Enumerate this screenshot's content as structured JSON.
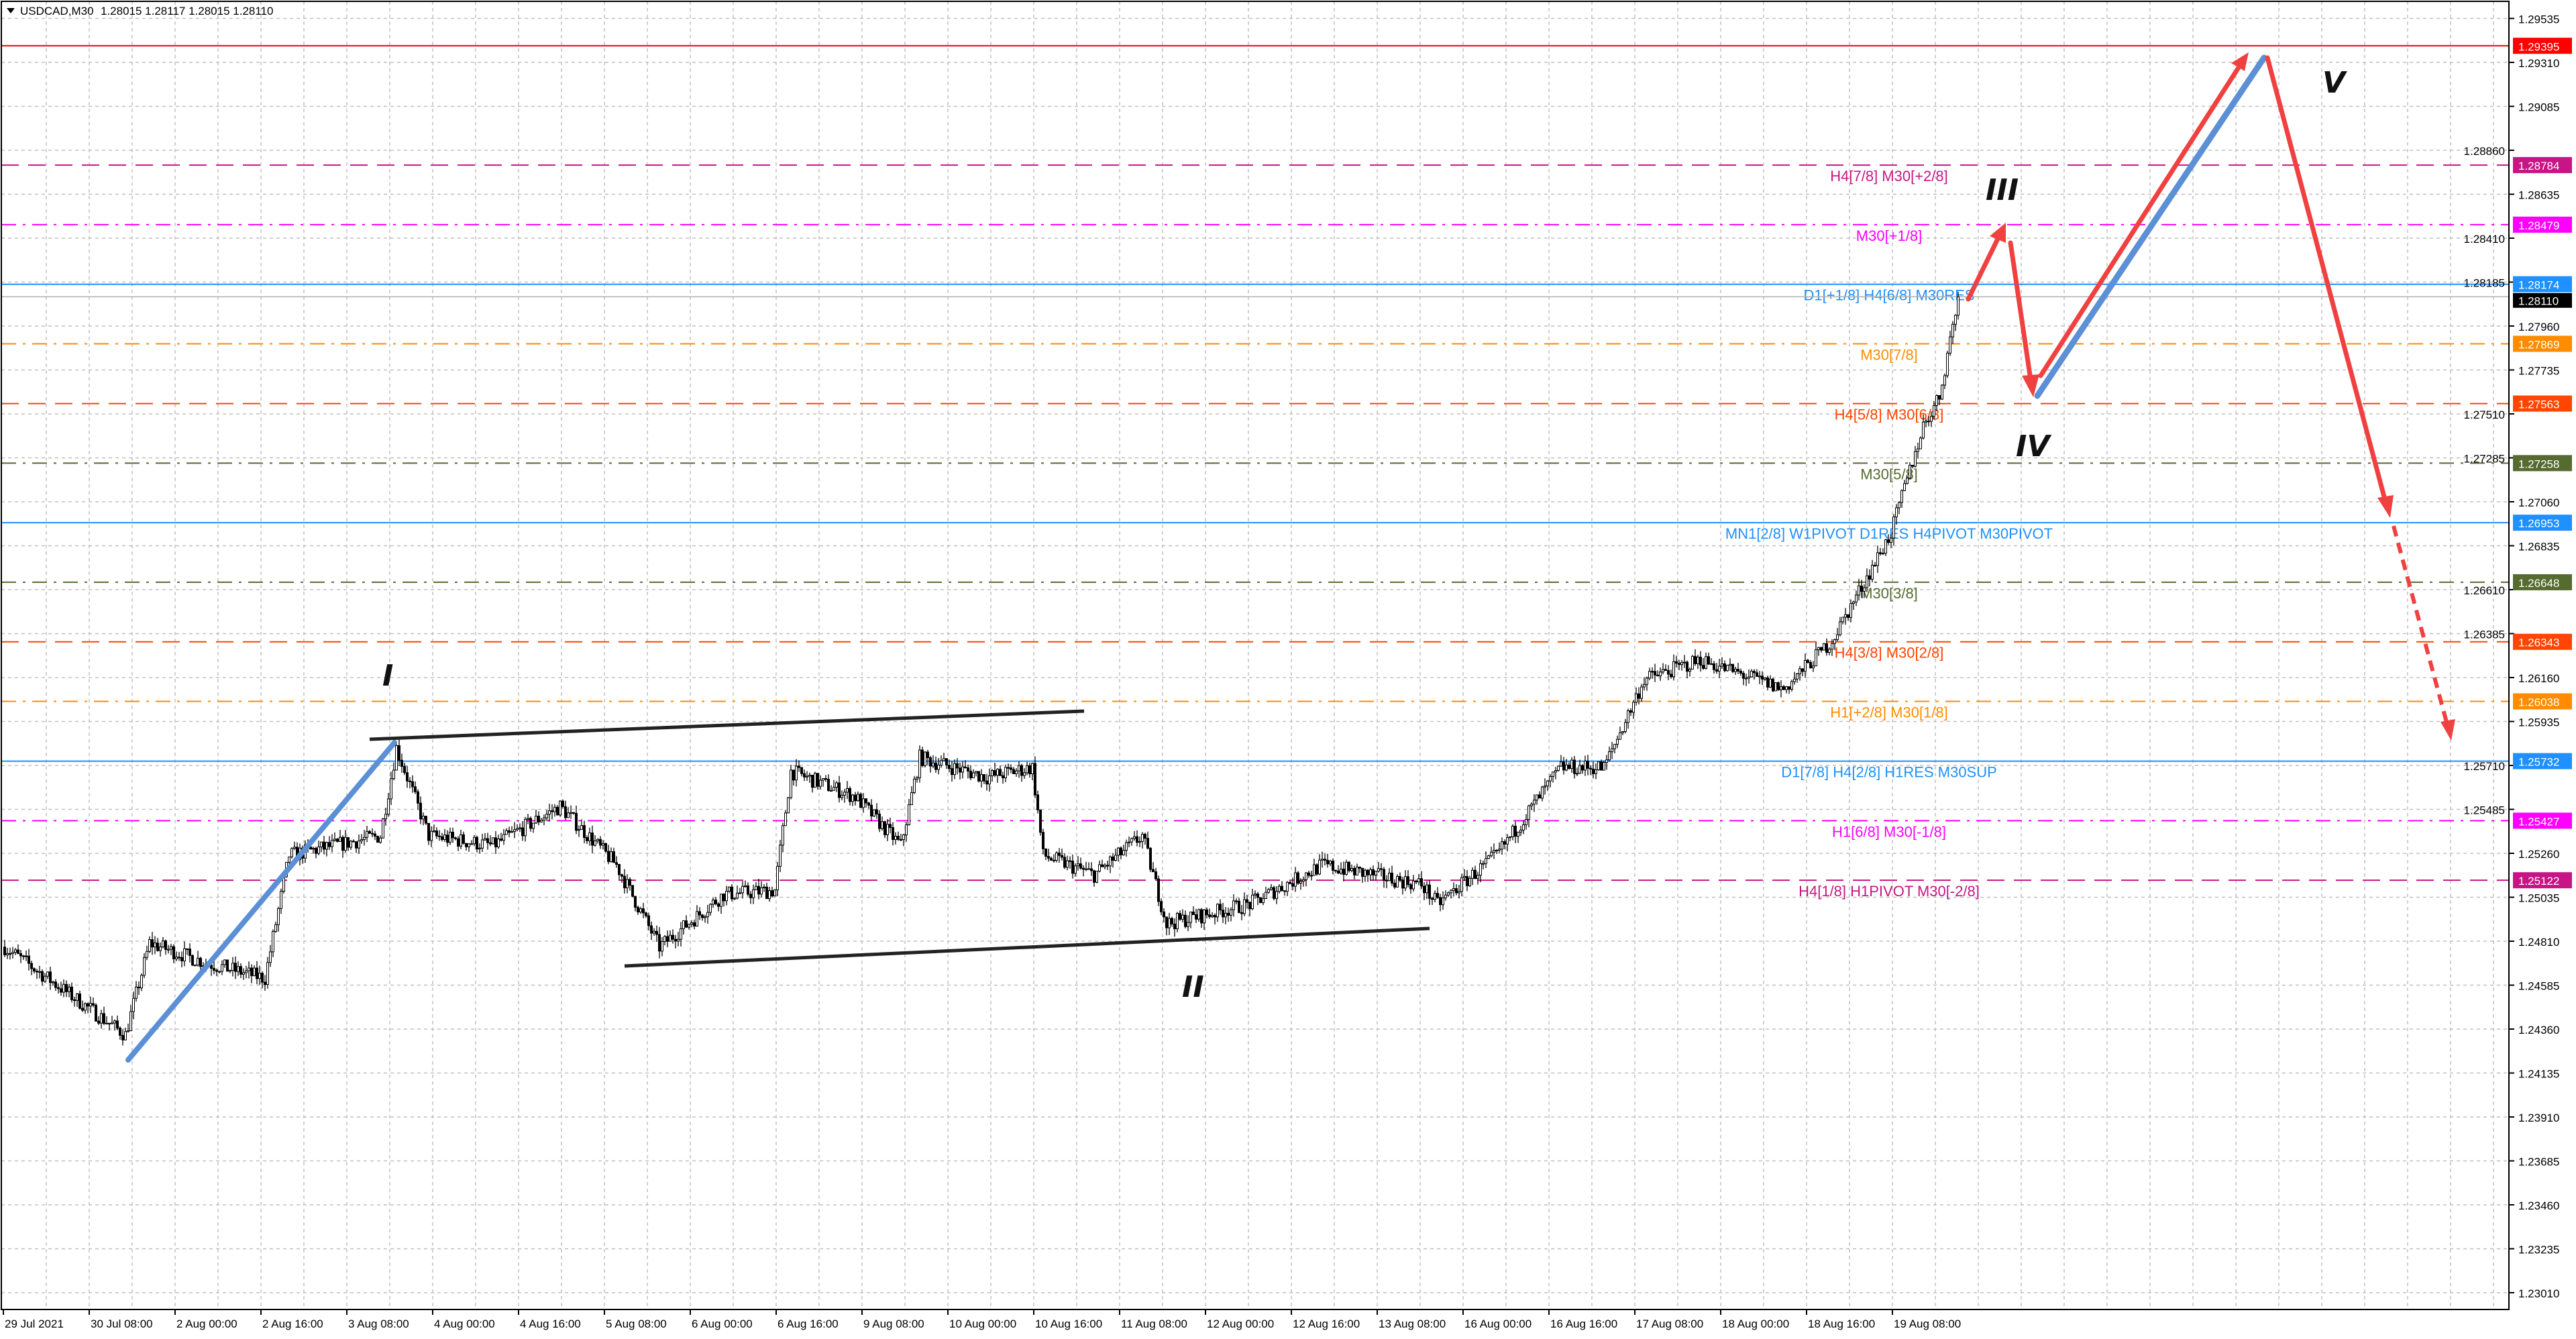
{
  "header": {
    "symbol": "USDCAD,M30",
    "ohlc": "1.28015 1.28117 1.28015 1.28110",
    "menu_icon": "triangle-down-icon"
  },
  "chart_data": {
    "type": "candlestick",
    "symbol": "USDCAD",
    "timeframe": "M30",
    "ylim": [
      1.229,
      1.296
    ],
    "grid": true,
    "current_price": "1.28110",
    "y_ticks": [
      "1.29535",
      "1.29310",
      "1.29085",
      "1.28860",
      "1.28635",
      "1.28410",
      "1.28185",
      "1.27960",
      "1.27735",
      "1.27510",
      "1.27285",
      "1.27060",
      "1.26835",
      "1.26610",
      "1.26385",
      "1.26160",
      "1.25935",
      "1.25710",
      "1.25485",
      "1.25260",
      "1.25035",
      "1.24810",
      "1.24585",
      "1.24360",
      "1.24135",
      "1.23910",
      "1.23685",
      "1.23460",
      "1.23235",
      "1.23010"
    ],
    "x_ticks": [
      "29 Jul 2021",
      "30 Jul 08:00",
      "2 Aug 00:00",
      "2 Aug 16:00",
      "3 Aug 08:00",
      "4 Aug 00:00",
      "4 Aug 16:00",
      "5 Aug 08:00",
      "6 Aug 00:00",
      "6 Aug 16:00",
      "9 Aug 08:00",
      "10 Aug 00:00",
      "10 Aug 16:00",
      "11 Aug 08:00",
      "12 Aug 00:00",
      "12 Aug 16:00",
      "13 Aug 08:00",
      "16 Aug 00:00",
      "16 Aug 16:00",
      "17 Aug 08:00",
      "18 Aug 00:00",
      "18 Aug 16:00",
      "19 Aug 08:00"
    ],
    "price_path": [
      [
        "07-29 16:00",
        1.2478
      ],
      [
        "07-30 03:30",
        1.2455
      ],
      [
        "07-30 14:30",
        1.2433
      ],
      [
        "07-30 19:00",
        1.248
      ],
      [
        "08-02 05:30",
        1.247
      ],
      [
        "08-02 16:30",
        1.2462
      ],
      [
        "08-02 21:00",
        1.2525
      ],
      [
        "08-03 14:00",
        1.2535
      ],
      [
        "08-03 17:00",
        1.258
      ],
      [
        "08-03 23:00",
        1.2535
      ],
      [
        "08-04 11:00",
        1.253
      ],
      [
        "08-04 23:30",
        1.255
      ],
      [
        "08-05 10:00",
        1.252
      ],
      [
        "08-05 18:00",
        1.2478
      ],
      [
        "08-06 06:00",
        1.2505
      ],
      [
        "08-06 15:30",
        1.2507
      ],
      [
        "08-06 18:30",
        1.2568
      ],
      [
        "08-09 06:30",
        1.2555
      ],
      [
        "08-09 15:00",
        1.253
      ],
      [
        "08-09 18:30",
        1.2575
      ],
      [
        "08-10 07:00",
        1.2565
      ],
      [
        "08-10 15:30",
        1.257
      ],
      [
        "08-10 17:30",
        1.2525
      ],
      [
        "08-11 03:00",
        1.2515
      ],
      [
        "08-11 12:00",
        1.2535
      ],
      [
        "08-11 16:30",
        1.249
      ],
      [
        "08-12 08:00",
        1.25
      ],
      [
        "08-12 21:30",
        1.252
      ],
      [
        "08-13 16:00",
        1.251
      ],
      [
        "08-13 19:00",
        1.25
      ],
      [
        "08-16 06:00",
        1.2525
      ],
      [
        "08-16 18:00",
        1.257
      ],
      [
        "08-17 02:00",
        1.257
      ],
      [
        "08-17 09:30",
        1.2615
      ],
      [
        "08-17 20:00",
        1.2625
      ],
      [
        "08-18 11:30",
        1.261
      ],
      [
        "08-18 20:30",
        1.2635
      ],
      [
        "08-19 07:30",
        1.269
      ],
      [
        "08-19 13:30",
        1.2745
      ],
      [
        "08-19 16:30",
        1.276
      ],
      [
        "08-19 20:00",
        1.2811
      ]
    ],
    "levels": [
      {
        "price": "1.29395",
        "color": "#ff0000",
        "style": "solid",
        "label": ""
      },
      {
        "price": "1.28784",
        "color": "#c71585",
        "style": "dash",
        "label": "H4[7/8] M30[+2/8]"
      },
      {
        "price": "1.28479",
        "color": "#ff00ff",
        "style": "dashdot",
        "label": "M30[+1/8]"
      },
      {
        "price": "1.28174",
        "color": "#1e90ff",
        "style": "solid",
        "label": "D1[+1/8] H4[6/8] M30RES"
      },
      {
        "price": "1.27869",
        "color": "#ff8c00",
        "style": "dashdot",
        "label": "M30[7/8]"
      },
      {
        "price": "1.27563",
        "color": "#ff4500",
        "style": "dash",
        "label": "H4[5/8] M30[6/8]"
      },
      {
        "price": "1.27258",
        "color": "#556b2f",
        "style": "dashdot",
        "label": "M30[5/8]"
      },
      {
        "price": "1.26953",
        "color": "#1e90ff",
        "style": "solid",
        "label": "MN1[2/8] W1PIVOT D1RES H4PIVOT M30PIVOT"
      },
      {
        "price": "1.26648",
        "color": "#556b2f",
        "style": "dashdot",
        "label": "M30[3/8]"
      },
      {
        "price": "1.26343",
        "color": "#ff4500",
        "style": "dash",
        "label": "H4[3/8] M30[2/8]"
      },
      {
        "price": "1.26038",
        "color": "#ff8c00",
        "style": "dashdot",
        "label": "H1[+2/8] M30[1/8]"
      },
      {
        "price": "1.25732",
        "color": "#1e90ff",
        "style": "solid",
        "label": "D1[7/8] H4[2/8] H1RES M30SUP"
      },
      {
        "price": "1.25427",
        "color": "#ff00ff",
        "style": "dashdot",
        "label": "H1[6/8] M30[-1/8]"
      },
      {
        "price": "1.25122",
        "color": "#c71585",
        "style": "dash",
        "label": "H4[1/8] H1PIVOT M30[-2/8]"
      }
    ],
    "wave_labels": {
      "w1": "I",
      "w2": "II",
      "w3": "III",
      "w4": "IV",
      "w5": "V"
    },
    "colors": {
      "bull_body": "#ffffff",
      "bear_body": "#000000",
      "candle_outline": "#000000",
      "arrow": "#f04040",
      "trend_blue": "#5b8fd6",
      "channel": "#222222",
      "grid": "#c0c0c0"
    }
  }
}
